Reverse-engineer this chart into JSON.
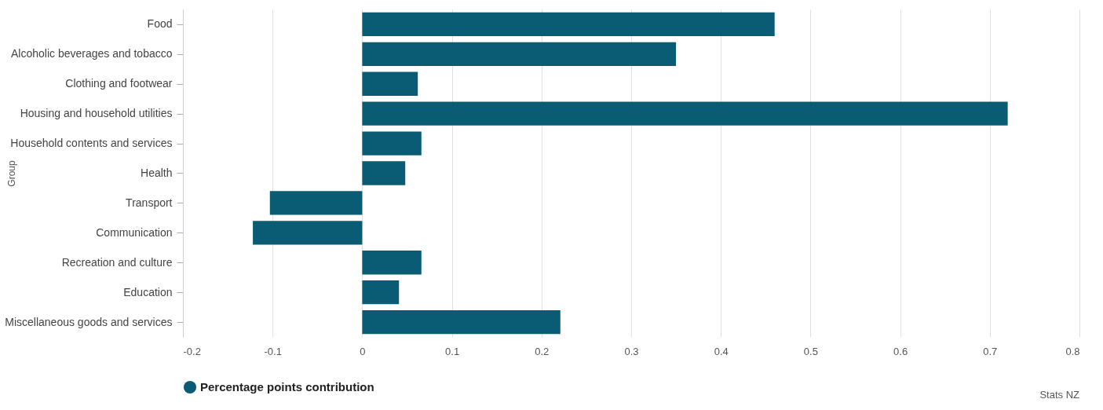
{
  "chart_data": {
    "type": "bar",
    "orientation": "horizontal",
    "ylabel": "Group",
    "categories": [
      "Food",
      "Alcoholic beverages and tobacco",
      "Clothing and footwear",
      "Housing and household utilities",
      "Household contents and services",
      "Health",
      "Transport",
      "Communication",
      "Recreation and culture",
      "Education",
      "Miscellaneous goods and services"
    ],
    "series": [
      {
        "name": "Percentage points contribution",
        "color": "#0a5c75",
        "values": [
          0.46,
          0.35,
          0.062,
          0.72,
          0.066,
          0.048,
          -0.103,
          -0.122,
          0.066,
          0.041,
          0.221
        ]
      }
    ],
    "xlim": [
      -0.2,
      0.8
    ],
    "xticks": [
      -0.2,
      -0.1,
      0,
      0.1,
      0.2,
      0.3,
      0.4,
      0.5,
      0.6,
      0.7,
      0.8
    ],
    "grid": "x",
    "legend": "bottom",
    "annotations": [
      "Stats NZ"
    ]
  }
}
